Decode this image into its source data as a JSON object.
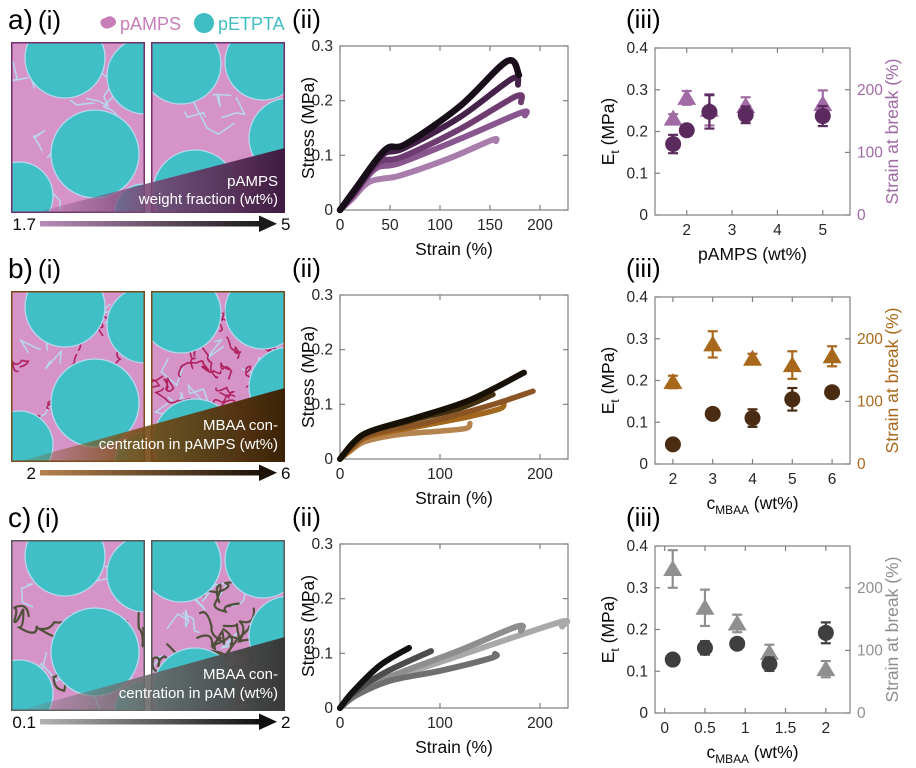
{
  "figure": {
    "legend": {
      "items": [
        {
          "label": "pAMPS",
          "color": "#c77db9",
          "swatch": "blob"
        },
        {
          "label": "pETPTA",
          "color": "#3fbdc2",
          "swatch": "circle"
        }
      ]
    },
    "palette": {
      "matrix_pink": "#d593c8",
      "droplet_teal": "#41bfc6",
      "gap_blue": "#b7d8ee"
    },
    "rows": [
      {
        "panel_label": "a)",
        "sub_i": "(i)",
        "sub_ii": "(ii)",
        "sub_iii": "(iii)",
        "schematic": {
          "wedge_line1": "pAMPS",
          "wedge_line2": "weight fraction (wt%)",
          "arrow_start": "1.7",
          "arrow_end": "5",
          "accent_border": "#6e2f6b",
          "wedge_mid": "#7c4a79",
          "wedge_dark": "#3f1b40",
          "arrow_light": "#b98cb8",
          "arrow_dark": "#1a1a1a",
          "squiggle_style": "none",
          "squiggle_color": ""
        }
      },
      {
        "panel_label": "b)",
        "sub_i": "(i)",
        "sub_ii": "(ii)",
        "sub_iii": "(iii)",
        "schematic": {
          "wedge_line1": "MBAA con-",
          "wedge_line2": "centration in pAMPS (wt%)",
          "arrow_start": "2",
          "arrow_end": "6",
          "accent_border": "#7a4a1c",
          "wedge_mid": "#7a4e16",
          "wedge_dark": "#3c2206",
          "arrow_light": "#b5824e",
          "arrow_dark": "#1c1208",
          "squiggle_style": "curls",
          "squiggle_color": "#b0205e"
        }
      },
      {
        "panel_label": "c)",
        "sub_i": "(i)",
        "sub_ii": "(ii)",
        "sub_iii": "(iii)",
        "schematic": {
          "wedge_line1": "MBAA con-",
          "wedge_line2": "centration in pAM (wt%)",
          "arrow_start": "0.1",
          "arrow_end": "2",
          "accent_border": "#5a5a5a",
          "wedge_mid": "#6e6e6e",
          "wedge_dark": "#383838",
          "arrow_light": "#b3b3b3",
          "arrow_dark": "#0f0f0f",
          "squiggle_style": "threads",
          "squiggle_color": "#50503a"
        }
      }
    ]
  },
  "chart_data": [
    {
      "panel": "a(ii)",
      "type": "line",
      "xlabel": "Strain (%)",
      "ylabel": "Stress (MPa)",
      "xlim": [
        0,
        228
      ],
      "ylim": [
        0,
        0.3
      ],
      "xticks": [
        0,
        50,
        100,
        150,
        200
      ],
      "yticks": [
        0,
        0.1,
        0.2,
        0.3
      ],
      "series": [
        {
          "color": "#a87cab",
          "width": 6,
          "points": [
            [
              0,
              0
            ],
            [
              12,
              0.02
            ],
            [
              30,
              0.052
            ],
            [
              60,
              0.063
            ],
            [
              110,
              0.095
            ],
            [
              152,
              0.128
            ],
            [
              156,
              0.126
            ]
          ]
        },
        {
          "color": "#8a5690",
          "width": 6,
          "points": [
            [
              0,
              0
            ],
            [
              13,
              0.026
            ],
            [
              35,
              0.075
            ],
            [
              60,
              0.086
            ],
            [
              120,
              0.13
            ],
            [
              181,
              0.178
            ],
            [
              185,
              0.173
            ]
          ]
        },
        {
          "color": "#6f3c72",
          "width": 6,
          "points": [
            [
              0,
              0
            ],
            [
              14,
              0.03
            ],
            [
              38,
              0.086
            ],
            [
              62,
              0.097
            ],
            [
              120,
              0.148
            ],
            [
              176,
              0.208
            ],
            [
              181,
              0.197
            ]
          ]
        },
        {
          "color": "#45224a",
          "width": 6,
          "points": [
            [
              0,
              0
            ],
            [
              15,
              0.035
            ],
            [
              42,
              0.1
            ],
            [
              64,
              0.113
            ],
            [
              120,
              0.17
            ],
            [
              172,
              0.24
            ],
            [
              178,
              0.229
            ]
          ]
        },
        {
          "color": "#170e1a",
          "width": 6.5,
          "points": [
            [
              0,
              0
            ],
            [
              16,
              0.04
            ],
            [
              45,
              0.11
            ],
            [
              66,
              0.121
            ],
            [
              120,
              0.19
            ],
            [
              167,
              0.272
            ],
            [
              179,
              0.247
            ]
          ]
        }
      ]
    },
    {
      "panel": "a(iii)",
      "type": "scatter_dual",
      "xlabel": "pAMPS (wt%)",
      "ylabel_left": "E_t (MPa)",
      "ylabel_right": "Strain at break (%)",
      "xlim": [
        1.3,
        5.6
      ],
      "ylim_left": [
        0,
        0.4
      ],
      "ylim_right": [
        0,
        266.7
      ],
      "xticks": [
        2,
        3,
        4,
        5
      ],
      "yticks_left": [
        0,
        0.1,
        0.2,
        0.3,
        0.4
      ],
      "yticks_right": [
        0,
        100,
        200
      ],
      "left_color": "#5b2a5e",
      "right_color": "#a06aa5",
      "series": [
        {
          "axis": "right",
          "marker": "triangle",
          "color": "#a06aa5",
          "x": [
            1.7,
            2,
            2.5,
            3.3,
            5
          ],
          "y": [
            154,
            187,
            168,
            174,
            177
          ],
          "yerr": [
            7,
            11,
            25,
            14,
            22
          ]
        },
        {
          "axis": "left",
          "marker": "circle",
          "color": "#5b2a5e",
          "x": [
            1.7,
            2,
            2.5,
            3.3,
            5
          ],
          "y": [
            0.17,
            0.203,
            0.247,
            0.24,
            0.237
          ],
          "yerr": [
            0.022,
            0.013,
            0.04,
            0.02,
            0.024
          ]
        }
      ]
    },
    {
      "panel": "b(ii)",
      "type": "line",
      "xlabel": "Strain (%)",
      "ylabel": "Stress (MPa)",
      "xlim": [
        0,
        228
      ],
      "ylim": [
        0,
        0.3
      ],
      "xticks": [
        0,
        100,
        200
      ],
      "yticks": [
        0,
        0.1,
        0.2,
        0.3
      ],
      "series": [
        {
          "color": "#b5834e",
          "width": 5.5,
          "points": [
            [
              0,
              0
            ],
            [
              10,
              0.014
            ],
            [
              25,
              0.032
            ],
            [
              60,
              0.045
            ],
            [
              100,
              0.051
            ],
            [
              126,
              0.056
            ],
            [
              130,
              0.065
            ]
          ]
        },
        {
          "color": "#a2661d",
          "width": 5.5,
          "points": [
            [
              0,
              0
            ],
            [
              12,
              0.02
            ],
            [
              30,
              0.042
            ],
            [
              80,
              0.06
            ],
            [
              130,
              0.078
            ],
            [
              160,
              0.092
            ],
            [
              164,
              0.102
            ]
          ]
        },
        {
          "color": "#8a5424",
          "width": 5.5,
          "points": [
            [
              0,
              0
            ],
            [
              12,
              0.022
            ],
            [
              32,
              0.046
            ],
            [
              90,
              0.068
            ],
            [
              150,
              0.098
            ],
            [
              193,
              0.124
            ]
          ]
        },
        {
          "color": "#42300f",
          "width": 5.5,
          "points": [
            [
              0,
              0
            ],
            [
              14,
              0.03
            ],
            [
              30,
              0.05
            ],
            [
              70,
              0.07
            ],
            [
              120,
              0.093
            ],
            [
              153,
              0.118
            ]
          ]
        },
        {
          "color": "#171005",
          "width": 6,
          "points": [
            [
              0,
              0
            ],
            [
              15,
              0.033
            ],
            [
              32,
              0.052
            ],
            [
              75,
              0.075
            ],
            [
              130,
              0.108
            ],
            [
              184,
              0.158
            ]
          ]
        }
      ]
    },
    {
      "panel": "b(iii)",
      "type": "scatter_dual",
      "xlabel": "c_MBAA (wt%)",
      "ylabel_left": "E_t (MPa)",
      "ylabel_right": "Strain at break (%)",
      "xlim": [
        1.55,
        6.45
      ],
      "ylim_left": [
        0,
        0.4
      ],
      "ylim_right": [
        0,
        266.7
      ],
      "xticks": [
        2,
        3,
        4,
        5,
        6
      ],
      "yticks_left": [
        0,
        0.1,
        0.2,
        0.3,
        0.4
      ],
      "yticks_right": [
        0,
        100,
        200
      ],
      "left_color": "#4a2c12",
      "right_color": "#a8681c",
      "series": [
        {
          "axis": "right",
          "marker": "triangle",
          "color": "#a8681c",
          "x": [
            2,
            3,
            4,
            5,
            6
          ],
          "y": [
            131,
            191,
            168,
            158,
            172
          ],
          "yerr": [
            10,
            21,
            8,
            22,
            16
          ]
        },
        {
          "axis": "left",
          "marker": "circle",
          "color": "#4a2c12",
          "x": [
            2,
            3,
            4,
            5,
            6
          ],
          "y": [
            0.047,
            0.12,
            0.11,
            0.155,
            0.172
          ],
          "yerr": [
            0.006,
            0.01,
            0.021,
            0.027,
            0.012
          ]
        }
      ]
    },
    {
      "panel": "c(ii)",
      "type": "line",
      "xlabel": "Strain (%)",
      "ylabel": "Stress (MPa)",
      "xlim": [
        0,
        228
      ],
      "ylim": [
        0,
        0.3
      ],
      "xticks": [
        0,
        100,
        200
      ],
      "yticks": [
        0,
        0.1,
        0.2,
        0.3
      ],
      "series": [
        {
          "color": "#a9a9a9",
          "width": 6,
          "points": [
            [
              0,
              0
            ],
            [
              15,
              0.022
            ],
            [
              45,
              0.05
            ],
            [
              110,
              0.09
            ],
            [
              218,
              0.156
            ],
            [
              222,
              0.149
            ]
          ]
        },
        {
          "color": "#8e8e8e",
          "width": 6,
          "points": [
            [
              0,
              0
            ],
            [
              15,
              0.024
            ],
            [
              48,
              0.056
            ],
            [
              115,
              0.102
            ],
            [
              177,
              0.149
            ],
            [
              181,
              0.141
            ]
          ]
        },
        {
          "color": "#6f6f6f",
          "width": 6,
          "points": [
            [
              0,
              0
            ],
            [
              15,
              0.022
            ],
            [
              50,
              0.05
            ],
            [
              100,
              0.068
            ],
            [
              152,
              0.092
            ],
            [
              155,
              0.099
            ]
          ]
        },
        {
          "color": "#4c4c4c",
          "width": 6,
          "points": [
            [
              0,
              0
            ],
            [
              14,
              0.028
            ],
            [
              45,
              0.065
            ],
            [
              91,
              0.104
            ]
          ]
        },
        {
          "color": "#121212",
          "width": 6,
          "points": [
            [
              0,
              0
            ],
            [
              13,
              0.03
            ],
            [
              40,
              0.078
            ],
            [
              69,
              0.11
            ]
          ]
        }
      ]
    },
    {
      "panel": "c(iii)",
      "type": "scatter_dual",
      "xlabel": "c_MBAA (wt%)",
      "ylabel_left": "E_t (MPa)",
      "ylabel_right": "Strain at break (%)",
      "xlim": [
        -0.12,
        2.3
      ],
      "ylim_left": [
        0,
        0.4
      ],
      "ylim_right": [
        0,
        266.7
      ],
      "xticks": [
        0,
        0.5,
        1,
        1.5,
        2
      ],
      "yticks_left": [
        0,
        0.1,
        0.2,
        0.3,
        0.4
      ],
      "yticks_right": [
        0,
        100,
        200
      ],
      "left_color": "#3f3f3f",
      "right_color": "#8f8f8f",
      "series": [
        {
          "axis": "right",
          "marker": "triangle",
          "color": "#8f8f8f",
          "x": [
            0.1,
            0.5,
            0.9,
            1.3,
            2
          ],
          "y": [
            230,
            168,
            143,
            96,
            70
          ],
          "yerr": [
            30,
            29,
            14,
            13,
            13
          ]
        },
        {
          "axis": "left",
          "marker": "circle",
          "color": "#3f3f3f",
          "x": [
            0.1,
            0.5,
            0.9,
            1.3,
            2
          ],
          "y": [
            0.128,
            0.156,
            0.166,
            0.117,
            0.192
          ],
          "yerr": [
            0.009,
            0.016,
            0.012,
            0.016,
            0.025
          ]
        }
      ]
    }
  ]
}
